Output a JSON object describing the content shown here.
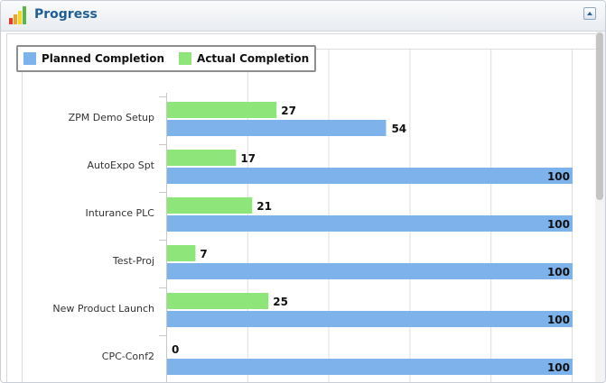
{
  "header": {
    "title": "Progress",
    "icon": "bar-chart-icon",
    "collapse_icon": "collapse-up-icon"
  },
  "legend": {
    "planned_label": "Planned Completion",
    "actual_label": "Actual Completion"
  },
  "colors": {
    "planned": "#7eb2ea",
    "actual": "#8ee57a",
    "title": "#1f5f96"
  },
  "chart_data": {
    "type": "bar",
    "orientation": "horizontal",
    "categories": [
      "ZPM Demo Setup",
      "AutoExpo Spt",
      "Inturance PLC",
      "Test-Proj",
      "New Product Launch",
      "CPC-Conf2"
    ],
    "series": [
      {
        "name": "Actual Completion",
        "values": [
          27,
          17,
          21,
          7,
          25,
          0
        ]
      },
      {
        "name": "Planned Completion",
        "values": [
          54,
          100,
          100,
          100,
          100,
          100
        ]
      }
    ],
    "xlim": [
      0,
      100
    ],
    "grid": true,
    "legend_position": "top-left"
  }
}
